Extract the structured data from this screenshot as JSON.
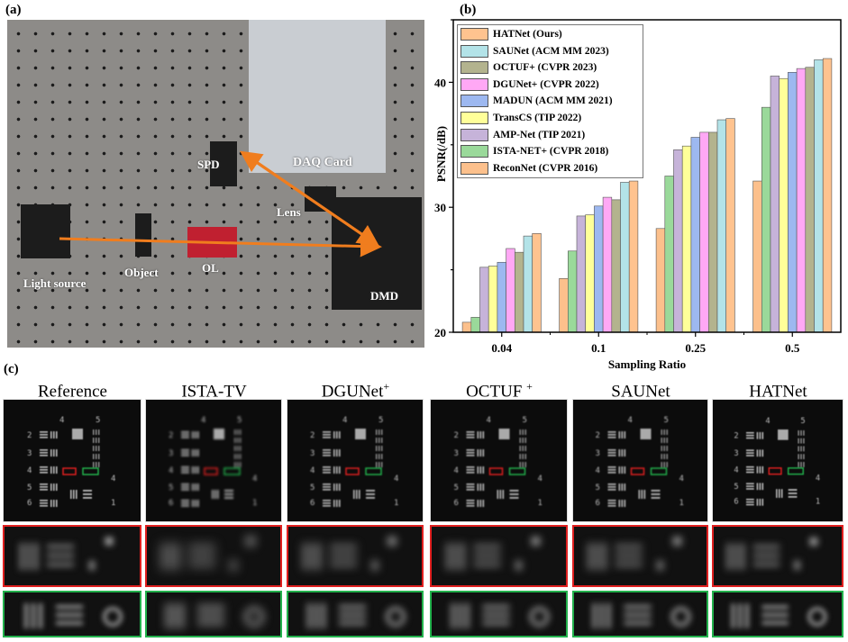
{
  "panels": {
    "a": "(a)",
    "b": "(b)",
    "c": "(c)"
  },
  "photo": {
    "labels": {
      "spd": "SPD",
      "daq": "DAQ Card",
      "lens": "Lens",
      "light_source": "Light source",
      "object": "Object",
      "ol": "OL",
      "dmd": "DMD"
    },
    "arrow_color": "#F07D1E"
  },
  "chart_data": {
    "type": "bar",
    "title": "",
    "xlabel": "Sampling Ratio",
    "ylabel": "PSNR(/dB)",
    "ylim": [
      20,
      45
    ],
    "yticks": [
      20,
      30,
      40
    ],
    "grid": false,
    "legend_position": "top-left",
    "categories": [
      "0.04",
      "0.1",
      "0.25",
      "0.5"
    ],
    "series": [
      {
        "name": "ReconNet (CVPR 2016)",
        "color": "#FCC08C",
        "values": [
          20.8,
          24.3,
          28.3,
          32.1
        ]
      },
      {
        "name": "ISTA-NET+ (CVPR 2018)",
        "color": "#9AD99A",
        "values": [
          21.2,
          26.5,
          32.5,
          38.0
        ]
      },
      {
        "name": "AMP-Net (TIP 2021)",
        "color": "#C6B3D9",
        "values": [
          25.2,
          29.3,
          34.6,
          40.5
        ]
      },
      {
        "name": "TransCS (TIP 2022)",
        "color": "#FFFF99",
        "values": [
          25.3,
          29.4,
          34.9,
          40.3
        ]
      },
      {
        "name": "MADUN (ACM MM 2021)",
        "color": "#9DB8F0",
        "values": [
          25.6,
          30.1,
          35.6,
          40.8
        ]
      },
      {
        "name": "DGUNet+ (CVPR 2022)",
        "color": "#FFA8F5",
        "values": [
          26.7,
          30.8,
          36.0,
          41.1
        ]
      },
      {
        "name": "OCTUF+ (CVPR 2023)",
        "color": "#B3B38E",
        "values": [
          26.4,
          30.6,
          36.0,
          41.2
        ]
      },
      {
        "name": "SAUNet (ACM MM 2023)",
        "color": "#B3E3E8",
        "values": [
          27.7,
          32.0,
          37.0,
          41.8
        ]
      },
      {
        "name": "HATNet (Ours)",
        "color": "#FFC38F",
        "values": [
          27.9,
          32.1,
          37.1,
          41.9
        ]
      }
    ],
    "legend_order": [
      "HATNet (Ours)",
      "SAUNet (ACM MM 2023)",
      "OCTUF+ (CVPR 2023)",
      "DGUNet+ (CVPR 2022)",
      "MADUN (ACM MM 2021)",
      "TransCS (TIP 2022)",
      "AMP-Net (TIP 2021)",
      "ISTA-NET+ (CVPR 2018)",
      "ReconNet (CVPR 2016)"
    ]
  },
  "comparison": {
    "columns": [
      {
        "name": "Reference",
        "sup": ""
      },
      {
        "name": "ISTA-TV",
        "sup": ""
      },
      {
        "name": "DGUNet",
        "sup": "+"
      },
      {
        "name": "OCTUF ",
        "sup": "+"
      },
      {
        "name": "SAUNet",
        "sup": ""
      },
      {
        "name": "HATNet",
        "sup": ""
      }
    ],
    "chart_digits": [
      "4",
      "5",
      "2",
      "3",
      "4",
      "5",
      "6",
      "4",
      "1"
    ],
    "roi_colors": {
      "red": "#E02020",
      "green": "#22B14C"
    }
  }
}
